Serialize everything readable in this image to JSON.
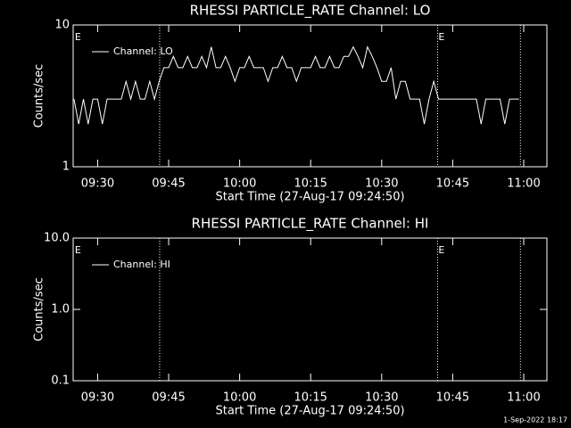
{
  "chart_data": [
    {
      "type": "line",
      "title": "RHESSI PARTICLE_RATE Channel: LO",
      "ylabel": "Counts/sec",
      "xlabel": "Start Time (27-Aug-17 09:24:50)",
      "log_y": true,
      "ylim": [
        1,
        10
      ],
      "yticks": [
        1,
        10
      ],
      "xlim": [
        564.83,
        664.9
      ],
      "xticks": [
        {
          "value": 570,
          "label": "09:30"
        },
        {
          "value": 585,
          "label": "09:45"
        },
        {
          "value": 600,
          "label": "10:00"
        },
        {
          "value": 615,
          "label": "10:15"
        },
        {
          "value": 630,
          "label": "10:30"
        },
        {
          "value": 645,
          "label": "10:45"
        },
        {
          "value": 660,
          "label": "11:00"
        }
      ],
      "flags": [
        {
          "x": 565,
          "label": "E"
        },
        {
          "x": 641.8,
          "label": "E"
        }
      ],
      "vlines": [
        583.1,
        641.8,
        659.3
      ],
      "series": [
        {
          "name": "Channel: LO",
          "color": "#ffffff",
          "x": [
            565,
            566,
            567,
            568,
            569,
            570,
            571,
            572,
            573,
            574,
            575,
            576,
            577,
            578,
            579,
            580,
            581,
            582,
            583,
            584,
            585,
            586,
            587,
            588,
            589,
            590,
            591,
            592,
            593,
            594,
            595,
            596,
            597,
            598,
            599,
            600,
            601,
            602,
            603,
            604,
            605,
            606,
            607,
            608,
            609,
            610,
            611,
            612,
            613,
            614,
            615,
            616,
            617,
            618,
            619,
            620,
            621,
            622,
            623,
            624,
            625,
            626,
            627,
            628,
            629,
            630,
            631,
            632,
            633,
            634,
            635,
            636,
            637,
            638,
            639,
            640,
            641,
            642,
            643,
            644,
            645,
            646,
            647,
            648,
            649,
            650,
            651,
            652,
            653,
            654,
            655,
            656,
            657,
            658,
            659
          ],
          "values": [
            3,
            2,
            3,
            2,
            3,
            3,
            2,
            3,
            3,
            3,
            3,
            4,
            3,
            4,
            3,
            3,
            4,
            3,
            4,
            5,
            5,
            6,
            5,
            5,
            6,
            5,
            5,
            6,
            5,
            7,
            5,
            5,
            6,
            5,
            4,
            5,
            5,
            6,
            5,
            5,
            5,
            4,
            5,
            5,
            6,
            5,
            5,
            4,
            5,
            5,
            5,
            6,
            5,
            5,
            6,
            5,
            5,
            6,
            6,
            7,
            6,
            5,
            7,
            6,
            5,
            4,
            4,
            5,
            3,
            4,
            4,
            3,
            3,
            3,
            2,
            3,
            4,
            3,
            3,
            3,
            3,
            3,
            3,
            3,
            3,
            3,
            2,
            3,
            3,
            3,
            3,
            2,
            3,
            3,
            3
          ]
        }
      ]
    },
    {
      "type": "line",
      "title": "RHESSI PARTICLE_RATE Channel: HI",
      "ylabel": "Counts/sec",
      "xlabel": "Start Time (27-Aug-17 09:24:50)",
      "log_y": true,
      "ylim": [
        0.1,
        10
      ],
      "yticks": [
        {
          "value": 0.1,
          "label": "0.1"
        },
        {
          "value": 1,
          "label": "1.0"
        },
        {
          "value": 10,
          "label": "10.0"
        }
      ],
      "xlim": [
        564.83,
        664.9
      ],
      "xticks": [
        {
          "value": 570,
          "label": "09:30"
        },
        {
          "value": 585,
          "label": "09:45"
        },
        {
          "value": 600,
          "label": "10:00"
        },
        {
          "value": 615,
          "label": "10:15"
        },
        {
          "value": 630,
          "label": "10:30"
        },
        {
          "value": 645,
          "label": "10:45"
        },
        {
          "value": 660,
          "label": "11:00"
        }
      ],
      "flags": [
        {
          "x": 565,
          "label": "E"
        },
        {
          "x": 641.8,
          "label": "E"
        }
      ],
      "vlines": [
        583.1,
        641.8,
        659.3
      ],
      "series": [
        {
          "name": "Channel: HI",
          "color": "#ffffff",
          "x": [],
          "values": []
        }
      ]
    }
  ],
  "footer": "1-Sep-2022 18:17"
}
